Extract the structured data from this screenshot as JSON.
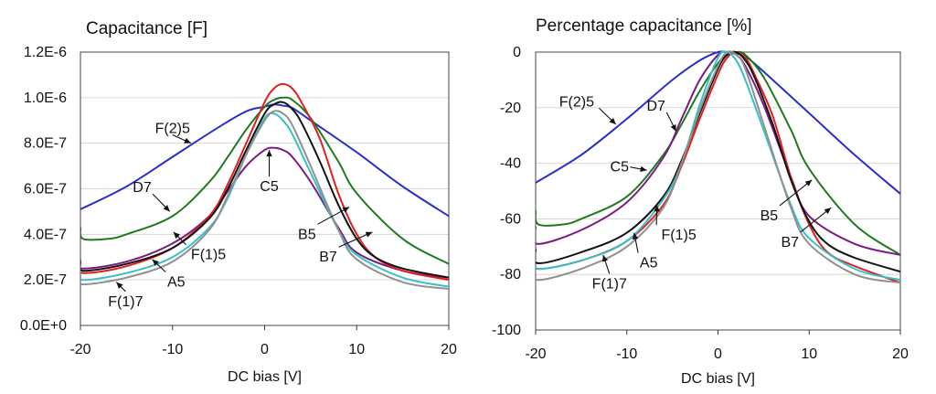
{
  "chart_data": [
    {
      "type": "line",
      "title": "Capacitance [F]",
      "xlabel": "DC bias [V]",
      "ylabel": "",
      "xlim": [
        -20,
        20
      ],
      "ylim": [
        0,
        1.2e-06
      ],
      "xticks": [
        -20,
        -10,
        0,
        10,
        20
      ],
      "xtick_labels": [
        "-20",
        "-10",
        "0",
        "10",
        "20"
      ],
      "yticks": [
        0,
        2e-07,
        4e-07,
        6e-07,
        8e-07,
        1e-06,
        1.2e-06
      ],
      "ytick_labels": [
        "0.0E+0",
        "2.0E-7",
        "4.0E-7",
        "6.0E-7",
        "8.0E-7",
        "1.0E-6",
        "1.2E-6"
      ],
      "grid": "horizontal",
      "series": [
        {
          "name": "F(2)5",
          "color": "#2a2fc8",
          "x": [
            -20,
            -15,
            -10,
            -5,
            -2,
            0,
            1,
            2,
            3,
            5,
            10,
            15,
            20
          ],
          "y": [
            5.1e-07,
            6.1e-07,
            7.4e-07,
            8.7e-07,
            9.4e-07,
            9.6e-07,
            9.7e-07,
            9.65e-07,
            9.55e-07,
            9e-07,
            7.6e-07,
            6.1e-07,
            4.8e-07
          ]
        },
        {
          "name": "D7",
          "color": "#1e7a1e",
          "x": [
            -20,
            -19.7,
            -17,
            -15,
            -10,
            -6,
            -4,
            -2,
            0,
            1,
            2,
            3,
            5,
            8,
            10,
            15,
            20
          ],
          "y": [
            4.3e-07,
            3.8e-07,
            3.8e-07,
            4e-07,
            4.8e-07,
            6.3e-07,
            7.4e-07,
            8.6e-07,
            9.6e-07,
            9.9e-07,
            1e-06,
            9.9e-07,
            9.1e-07,
            7.2e-07,
            5.8e-07,
            3.8e-07,
            2.7e-07
          ]
        },
        {
          "name": "C5",
          "color": "#7b1a82",
          "x": [
            -20,
            -19.8,
            -15,
            -10,
            -6,
            -4,
            -2,
            0,
            1,
            2,
            3,
            5,
            8,
            10,
            15,
            20
          ],
          "y": [
            2.9e-07,
            2.5e-07,
            2.8e-07,
            3.6e-07,
            4.8e-07,
            5.9e-07,
            7e-07,
            7.7e-07,
            7.8e-07,
            7.7e-07,
            7.4e-07,
            6.3e-07,
            4.3e-07,
            3.2e-07,
            2.4e-07,
            2.1e-07
          ]
        },
        {
          "name": "A5",
          "color": "#e02020",
          "x": [
            -20,
            -19.7,
            -15,
            -10,
            -6,
            -4,
            -2,
            0,
            1,
            2,
            3,
            4,
            6,
            8,
            10,
            12,
            15,
            20
          ],
          "y": [
            2.7e-07,
            2.3e-07,
            2.6e-07,
            3.4e-07,
            4.8e-07,
            6.2e-07,
            8e-07,
            9.8e-07,
            1.04e-06,
            1.06e-06,
            1.04e-06,
            9.8e-07,
            8.2e-07,
            5.8e-07,
            4e-07,
            3e-07,
            2.4e-07,
            2e-07
          ]
        },
        {
          "name": "F(1)5",
          "color": "#111111",
          "x": [
            -20,
            -19.7,
            -15,
            -10,
            -6,
            -4,
            -2,
            0,
            1,
            2,
            3,
            4,
            6,
            8,
            10,
            12,
            15,
            20
          ],
          "y": [
            2.8e-07,
            2.4e-07,
            2.7e-07,
            3.4e-07,
            4.7e-07,
            6e-07,
            7.7e-07,
            9.3e-07,
            9.7e-07,
            9.8e-07,
            9.5e-07,
            8.9e-07,
            7.2e-07,
            5.3e-07,
            3.8e-07,
            3e-07,
            2.5e-07,
            2.1e-07
          ]
        },
        {
          "name": "F(1)7",
          "color": "#36c0c8",
          "x": [
            -20,
            -19.7,
            -15,
            -10,
            -6,
            -4,
            -2,
            0,
            1,
            2,
            3,
            5,
            8,
            10,
            15,
            20
          ],
          "y": [
            2.4e-07,
            2e-07,
            2.3e-07,
            3e-07,
            4.3e-07,
            5.6e-07,
            7.5e-07,
            9.1e-07,
            9.3e-07,
            9e-07,
            8.4e-07,
            6.7e-07,
            4.2e-07,
            3.1e-07,
            2.1e-07,
            1.7e-07
          ]
        },
        {
          "name": "B7",
          "color": "#909090",
          "x": [
            -20,
            -19.7,
            -15,
            -10,
            -6,
            -4,
            -2,
            0,
            1,
            2,
            3,
            5,
            8,
            10,
            15,
            20
          ],
          "y": [
            2.1e-07,
            1.8e-07,
            2.1e-07,
            2.8e-07,
            4.2e-07,
            5.7e-07,
            7.5e-07,
            9e-07,
            9.4e-07,
            9.3e-07,
            8.8e-07,
            7e-07,
            4.2e-07,
            2.9e-07,
            1.9e-07,
            1.6e-07
          ]
        }
      ],
      "annotations": [
        {
          "text": "F(2)5",
          "x": -10,
          "y": 8.45e-07,
          "target": [
            -8,
            8e-07
          ]
        },
        {
          "text": "D7",
          "x": -13.3,
          "y": 5.85e-07,
          "target": [
            -10.3,
            5e-07
          ]
        },
        {
          "text": "C5",
          "x": 0.5,
          "y": 5.9e-07,
          "target": [
            0.5,
            7.7e-07
          ]
        },
        {
          "text": "B5",
          "x": 4.6,
          "y": 3.8e-07,
          "target": [
            9.2,
            5.2e-07
          ]
        },
        {
          "text": "B7",
          "x": 6.9,
          "y": 2.8e-07,
          "target": [
            11.7,
            4.1e-07
          ]
        },
        {
          "text": "F(1)5",
          "x": -6.1,
          "y": 2.9e-07,
          "target": [
            -9.9,
            4.1e-07
          ]
        },
        {
          "text": "A5",
          "x": -9.6,
          "y": 1.7e-07,
          "target": [
            -12.2,
            2.9e-07
          ]
        },
        {
          "text": "F(1)7",
          "x": -15.1,
          "y": 8.5e-08,
          "target": [
            -16.1,
            1.9e-07
          ]
        }
      ]
    },
    {
      "type": "line",
      "title": "Percentage capacitance [%]",
      "xlabel": "DC bias [V]",
      "ylabel": "",
      "xlim": [
        -20,
        20
      ],
      "ylim": [
        -100,
        0
      ],
      "xticks": [
        -20,
        -10,
        0,
        10,
        20
      ],
      "xtick_labels": [
        "-20",
        "-10",
        "0",
        "10",
        "20"
      ],
      "yticks": [
        -100,
        -80,
        -60,
        -40,
        -20,
        0
      ],
      "ytick_labels": [
        "-100",
        "-80",
        "-60",
        "-40",
        "-20",
        "0"
      ],
      "grid": "horizontal",
      "series": [
        {
          "name": "F(2)5",
          "color": "#2a2fc8",
          "x": [
            -20,
            -15,
            -10,
            -5,
            -2,
            0,
            1,
            2,
            3,
            5,
            10,
            15,
            20
          ],
          "y": [
            -47,
            -37,
            -24,
            -10,
            -3,
            0,
            0,
            -0.5,
            -1.5,
            -7,
            -22,
            -37,
            -51
          ]
        },
        {
          "name": "D7",
          "color": "#1e7a1e",
          "x": [
            -20,
            -19.7,
            -17,
            -15,
            -10,
            -6,
            -4,
            -2,
            0,
            1,
            2,
            3,
            5,
            8,
            10,
            15,
            20
          ],
          "y": [
            -57,
            -62,
            -62,
            -60,
            -52,
            -37,
            -26,
            -14,
            -4,
            -1,
            0,
            -1,
            -9,
            -28,
            -42,
            -62,
            -73
          ]
        },
        {
          "name": "C5",
          "color": "#7b1a82",
          "x": [
            -20,
            -19.8,
            -15,
            -10,
            -6,
            -4,
            -2,
            0,
            1,
            2,
            3,
            5,
            8,
            10,
            15,
            20
          ],
          "y": [
            -63,
            -69,
            -64,
            -54,
            -38,
            -24,
            -10,
            -1,
            0,
            -1,
            -5,
            -19,
            -45,
            -59,
            -69,
            -73
          ]
        },
        {
          "name": "A5",
          "color": "#e02020",
          "x": [
            -20,
            -19.7,
            -15,
            -10,
            -6,
            -4,
            -2,
            0,
            1,
            2,
            3,
            4,
            6,
            8,
            10,
            12,
            15,
            20
          ],
          "y": [
            -74,
            -78,
            -75,
            -68,
            -55,
            -41,
            -24,
            -8,
            -2,
            0,
            -2,
            -8,
            -23,
            -45,
            -62,
            -72,
            -77,
            -83
          ]
        },
        {
          "name": "F(1)5",
          "color": "#111111",
          "x": [
            -20,
            -19.7,
            -15,
            -10,
            -6,
            -4,
            -2,
            0,
            1,
            2,
            3,
            4,
            6,
            8,
            10,
            12,
            15,
            20
          ],
          "y": [
            -71,
            -76,
            -72,
            -65,
            -52,
            -39,
            -22,
            -6,
            -1,
            0,
            -3,
            -9,
            -26,
            -46,
            -61,
            -69,
            -74,
            -79
          ]
        },
        {
          "name": "F(1)7",
          "color": "#36c0c8",
          "x": [
            -20,
            -19.7,
            -15,
            -10,
            -6,
            -4,
            -2,
            0,
            1,
            2,
            3,
            5,
            8,
            10,
            15,
            20
          ],
          "y": [
            -74,
            -78,
            -75,
            -68,
            -53,
            -40,
            -19,
            -2,
            0,
            -3,
            -10,
            -28,
            -55,
            -67,
            -78,
            -82
          ]
        },
        {
          "name": "B7",
          "color": "#909090",
          "x": [
            -20,
            -19.7,
            -15,
            -10,
            -6,
            -4,
            -2,
            0,
            1,
            2,
            3,
            5,
            8,
            10,
            15,
            20
          ],
          "y": [
            -78,
            -82,
            -78,
            -70,
            -56,
            -40,
            -21,
            -5,
            0,
            -1,
            -6,
            -26,
            -56,
            -69,
            -80,
            -83
          ]
        }
      ],
      "annotations": [
        {
          "text": "F(2)5",
          "x": -15.5,
          "y": -19.5,
          "target": [
            -11.2,
            -26
          ]
        },
        {
          "text": "D7",
          "x": -6.8,
          "y": -21,
          "target": [
            -4.6,
            -28.5
          ]
        },
        {
          "text": "C5",
          "x": -10.8,
          "y": -43,
          "target": [
            -7.8,
            -42.5
          ]
        },
        {
          "text": "B5",
          "x": 5.6,
          "y": -60.5,
          "target": [
            10.3,
            -46
          ]
        },
        {
          "text": "B7",
          "x": 7.9,
          "y": -70,
          "target": [
            12.4,
            -56
          ]
        },
        {
          "text": "F(1)5",
          "x": -4.3,
          "y": -67.5,
          "target": [
            -6.7,
            -55
          ]
        },
        {
          "text": "A5",
          "x": -7.6,
          "y": -77.5,
          "target": [
            -9.2,
            -65
          ]
        },
        {
          "text": "F(1)7",
          "x": -11.9,
          "y": -85,
          "target": [
            -12.6,
            -73
          ]
        }
      ]
    }
  ]
}
